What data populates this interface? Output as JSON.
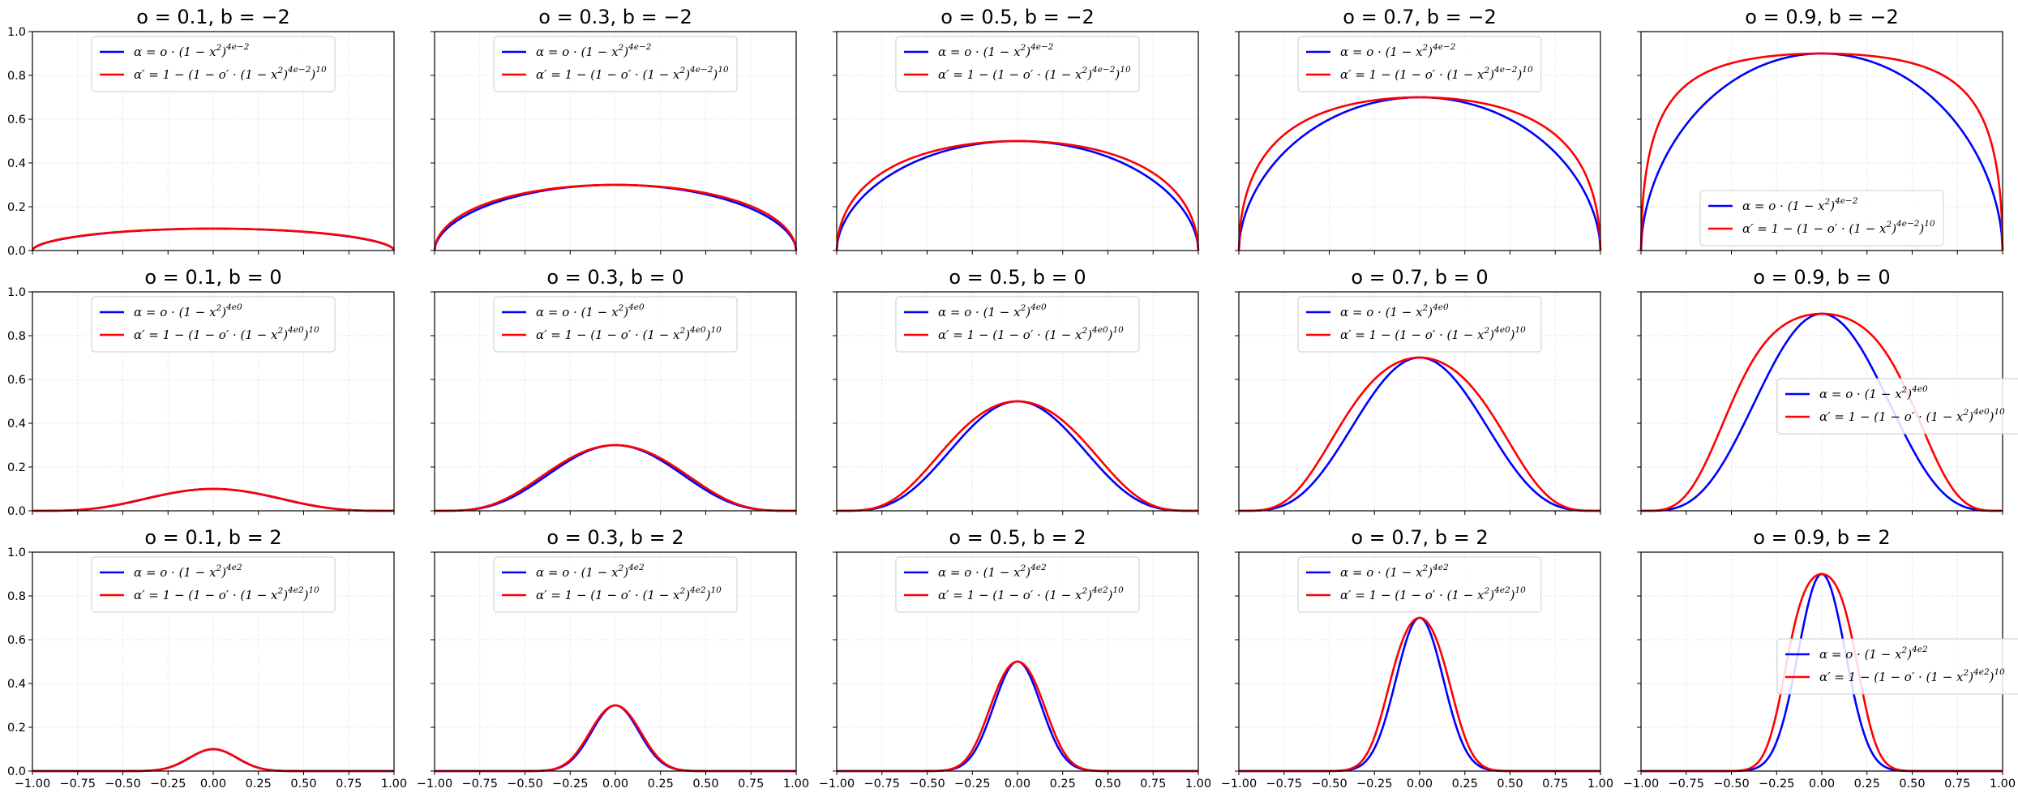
{
  "chart_data": {
    "type": "line",
    "layout": "3x5 grid of subplots, shared x and y axes",
    "x_range": [
      -1,
      1
    ],
    "y_range": [
      0,
      1
    ],
    "x_ticks": [
      "-1.00",
      "-0.75",
      "-0.50",
      "-0.25",
      "0.00",
      "0.25",
      "0.50",
      "0.75",
      "1.00"
    ],
    "y_ticks": [
      "0.0",
      "0.2",
      "0.4",
      "0.6",
      "0.8",
      "1.0"
    ],
    "grid": "light dotted",
    "o_values": [
      0.1,
      0.3,
      0.5,
      0.7,
      0.9
    ],
    "b_values": [
      -2,
      0,
      2
    ],
    "series_colors": {
      "alpha": "#0000ff",
      "alpha_prime": "#ff0000"
    },
    "legend_labels": {
      "alpha": {
        "prefix": "α = o · (1 − x",
        "sup1": "2",
        "mid": ")",
        "sup2_template": "4e^{b}"
      },
      "alpha_prime": {
        "prefix": "α′ = 1 − (1 − o′ · (1 − x",
        "sup1": "2",
        "mid": ")",
        "sup2_template": "4e^{b}",
        "suffix": ")",
        "sup3": "10"
      }
    },
    "formulas": {
      "alpha": "o * (1 - x^2)^(4 e^b)",
      "alpha_prime": "1 - (1 - o' * (1 - x^2)^(4 e^b))^10, with o' = 1 - (1 - o)^(1/10)"
    },
    "panels": [
      {
        "title": "o = 0.1, b = −2",
        "o": 0.1,
        "b": -2,
        "legend": "upper center"
      },
      {
        "title": "o = 0.3, b = −2",
        "o": 0.3,
        "b": -2,
        "legend": "upper center"
      },
      {
        "title": "o = 0.5, b = −2",
        "o": 0.5,
        "b": -2,
        "legend": "upper center"
      },
      {
        "title": "o = 0.7, b = −2",
        "o": 0.7,
        "b": -2,
        "legend": "upper center"
      },
      {
        "title": "o = 0.9, b = −2",
        "o": 0.9,
        "b": -2,
        "legend": "lower center"
      },
      {
        "title": "o = 0.1, b = 0",
        "o": 0.1,
        "b": 0,
        "legend": "upper center"
      },
      {
        "title": "o = 0.3, b = 0",
        "o": 0.3,
        "b": 0,
        "legend": "upper center"
      },
      {
        "title": "o = 0.5, b = 0",
        "o": 0.5,
        "b": 0,
        "legend": "upper center"
      },
      {
        "title": "o = 0.7, b = 0",
        "o": 0.7,
        "b": 0,
        "legend": "upper center"
      },
      {
        "title": "o = 0.9, b = 0",
        "o": 0.9,
        "b": 0,
        "legend": "center right"
      },
      {
        "title": "o = 0.1, b = 2",
        "o": 0.1,
        "b": 2,
        "legend": "upper center"
      },
      {
        "title": "o = 0.3, b = 2",
        "o": 0.3,
        "b": 2,
        "legend": "upper center"
      },
      {
        "title": "o = 0.5, b = 2",
        "o": 0.5,
        "b": 2,
        "legend": "upper center"
      },
      {
        "title": "o = 0.7, b = 2",
        "o": 0.7,
        "b": 2,
        "legend": "upper center"
      },
      {
        "title": "o = 0.9, b = 2",
        "o": 0.9,
        "b": 2,
        "legend": "center right"
      }
    ]
  }
}
